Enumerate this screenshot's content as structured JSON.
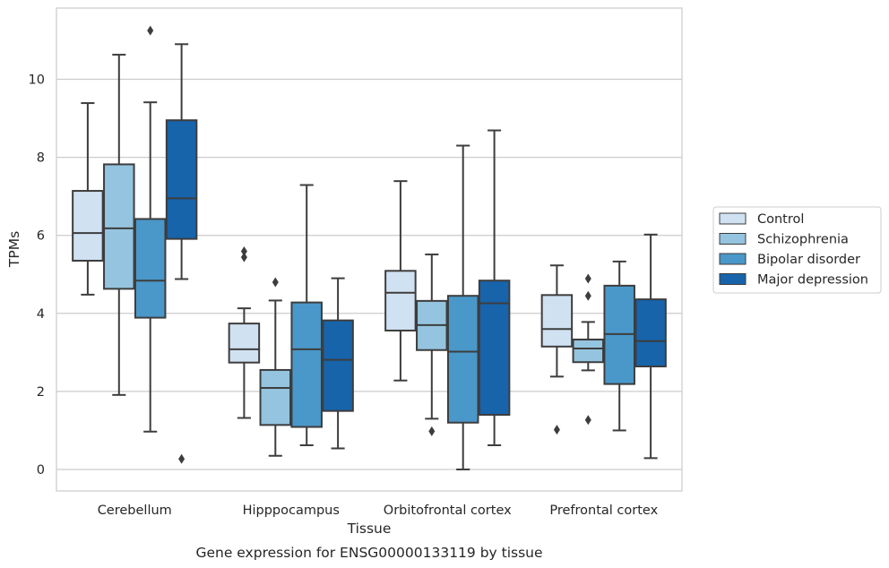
{
  "chart_data": {
    "type": "box",
    "title": "Gene expression for ENSG00000133119 by tissue",
    "xlabel": "Tissue",
    "ylabel": "TPMs",
    "ylim": [
      -0.55,
      11.85
    ],
    "yticks": [
      0,
      2,
      4,
      6,
      8,
      10
    ],
    "grid": "horizontal",
    "legend_position": "right",
    "categories": [
      "Cerebellum",
      "Hipppocampus",
      "Orbitofrontal cortex",
      "Prefrontal cortex"
    ],
    "series": [
      {
        "name": "Control",
        "color": "#d0e1f2",
        "boxes": [
          {
            "whislo": 4.48,
            "q1": 5.35,
            "med": 6.06,
            "q3": 7.14,
            "whishi": 9.39,
            "fliers": []
          },
          {
            "whislo": 1.32,
            "q1": 2.74,
            "med": 3.08,
            "q3": 3.74,
            "whishi": 4.13,
            "fliers": [
              5.44,
              5.59
            ]
          },
          {
            "whislo": 2.28,
            "q1": 3.56,
            "med": 4.53,
            "q3": 5.09,
            "whishi": 7.39,
            "fliers": []
          },
          {
            "whislo": 2.38,
            "q1": 3.15,
            "med": 3.6,
            "q3": 4.47,
            "whishi": 5.23,
            "fliers": [
              1.02
            ]
          }
        ]
      },
      {
        "name": "Schizophrenia",
        "color": "#94c4df",
        "boxes": [
          {
            "whislo": 1.91,
            "q1": 4.63,
            "med": 6.18,
            "q3": 7.82,
            "whishi": 10.63,
            "fliers": []
          },
          {
            "whislo": 0.35,
            "q1": 1.14,
            "med": 2.09,
            "q3": 2.55,
            "whishi": 4.33,
            "fliers": [
              4.8
            ]
          },
          {
            "whislo": 1.3,
            "q1": 3.06,
            "med": 3.7,
            "q3": 4.32,
            "whishi": 5.51,
            "fliers": [
              0.98
            ]
          },
          {
            "whislo": 2.54,
            "q1": 2.75,
            "med": 3.1,
            "q3": 3.33,
            "whishi": 3.78,
            "fliers": [
              1.27,
              4.45,
              4.89
            ]
          }
        ]
      },
      {
        "name": "Bipolar disorder",
        "color": "#4a98c9",
        "boxes": [
          {
            "whislo": 0.97,
            "q1": 3.89,
            "med": 4.84,
            "q3": 6.42,
            "whishi": 9.41,
            "fliers": [
              11.25
            ]
          },
          {
            "whislo": 0.62,
            "q1": 1.09,
            "med": 3.08,
            "q3": 4.28,
            "whishi": 7.29,
            "fliers": []
          },
          {
            "whislo": 0.0,
            "q1": 1.2,
            "med": 3.02,
            "q3": 4.45,
            "whishi": 8.3,
            "fliers": []
          },
          {
            "whislo": 1.0,
            "q1": 2.19,
            "med": 3.47,
            "q3": 4.71,
            "whishi": 5.33,
            "fliers": []
          }
        ]
      },
      {
        "name": "Major depression",
        "color": "#1764ab",
        "boxes": [
          {
            "whislo": 4.88,
            "q1": 5.91,
            "med": 6.95,
            "q3": 8.95,
            "whishi": 10.9,
            "fliers": [
              0.27
            ]
          },
          {
            "whislo": 0.54,
            "q1": 1.5,
            "med": 2.81,
            "q3": 3.82,
            "whishi": 4.9,
            "fliers": []
          },
          {
            "whislo": 0.62,
            "q1": 1.4,
            "med": 4.26,
            "q3": 4.84,
            "whishi": 8.69,
            "fliers": []
          },
          {
            "whislo": 0.29,
            "q1": 2.64,
            "med": 3.29,
            "q3": 4.36,
            "whishi": 6.02,
            "fliers": []
          }
        ]
      }
    ]
  }
}
